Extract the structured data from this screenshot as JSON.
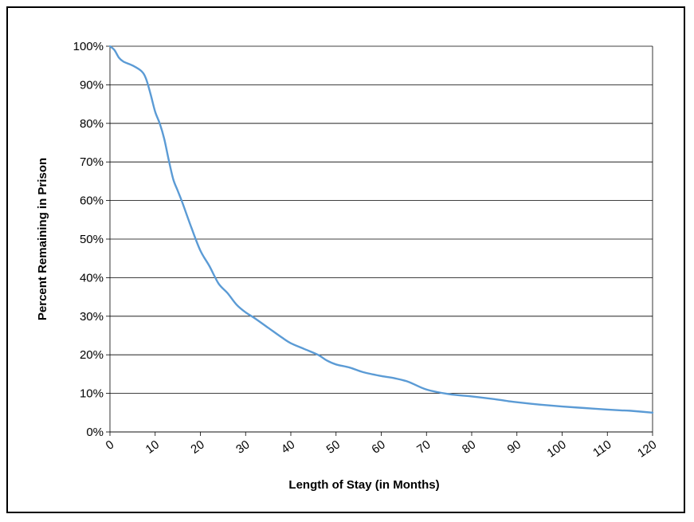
{
  "chart_data": {
    "type": "line",
    "title": "",
    "xlabel": "Length of Stay (in Months)",
    "ylabel": "Percent Remaining in Prison",
    "xlim": [
      0,
      120
    ],
    "ylim": [
      0,
      100
    ],
    "x_ticks": [
      "0",
      "10",
      "20",
      "30",
      "40",
      "50",
      "60",
      "70",
      "80",
      "90",
      "100",
      "110",
      "120"
    ],
    "y_ticks": [
      "0%",
      "10%",
      "20%",
      "30%",
      "40%",
      "50%",
      "60%",
      "70%",
      "80%",
      "90%",
      "100%"
    ],
    "grid": "horizontal",
    "legend": "none",
    "line_color": "#5B9BD5",
    "series": [
      {
        "x": [
          0,
          1,
          2,
          3,
          5,
          7,
          8,
          9,
          10,
          11,
          12,
          13,
          14,
          15,
          16,
          18,
          20,
          22,
          24,
          26,
          28,
          30,
          32,
          35,
          38,
          40,
          43,
          46,
          48,
          50,
          53,
          56,
          60,
          63,
          66,
          70,
          75,
          80,
          85,
          88,
          90,
          95,
          100,
          105,
          110,
          113,
          115,
          120
        ],
        "y": [
          100,
          99,
          97,
          96,
          95,
          93.5,
          91.5,
          87.5,
          83,
          80,
          76,
          70.5,
          65.5,
          62.5,
          59.5,
          53,
          47,
          43,
          38.5,
          36,
          33,
          31,
          29.5,
          27,
          24.5,
          23,
          21.5,
          20,
          18.5,
          17.5,
          16.7,
          15.5,
          14.5,
          13.9,
          13,
          11,
          9.8,
          9.2,
          8.5,
          8,
          7.7,
          7.1,
          6.6,
          6.2,
          5.8,
          5.6,
          5.5,
          5
        ]
      }
    ]
  }
}
